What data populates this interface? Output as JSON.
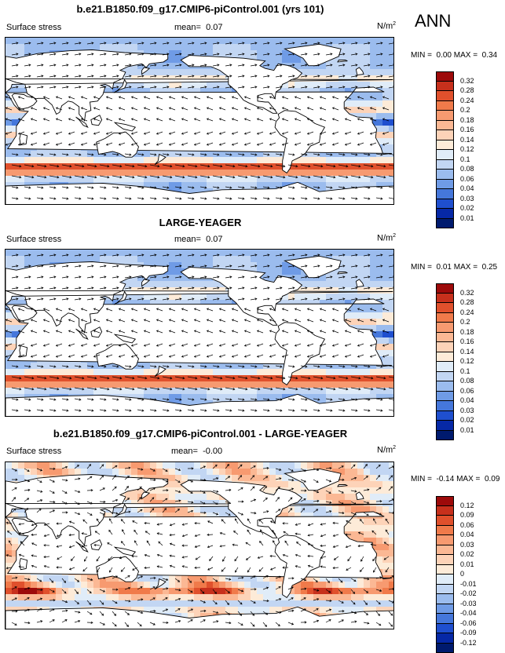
{
  "season": "ANN",
  "panels": [
    {
      "title": "b.e21.B1850.f09_g17.CMIP6-piControl.001 (yrs 101)",
      "variable": "Surface stress",
      "mean_label": "mean=",
      "mean": "0.07",
      "units": "N/m",
      "units_sup": "2",
      "min_label": "MIN =",
      "min": "0.00",
      "max_label": "MAX =",
      "max": "0.34",
      "levels": [
        "0.32",
        "0.28",
        "0.24",
        "0.2",
        "0.18",
        "0.16",
        "0.14",
        "0.12",
        "0.1",
        "0.08",
        "0.06",
        "0.04",
        "0.03",
        "0.02",
        "0.01"
      ],
      "colors": [
        "#9d0a0a",
        "#c7301c",
        "#e0502c",
        "#f07a4a",
        "#f79a70",
        "#fbb894",
        "#fdd3b8",
        "#fdebd8",
        "#e0ecf8",
        "#c2d6f3",
        "#9bbcee",
        "#6f9be6",
        "#4577db",
        "#1f4fcf",
        "#0628a6",
        "#001a6e"
      ],
      "field": "total"
    },
    {
      "title": "LARGE-YEAGER",
      "variable": "Surface stress",
      "mean_label": "mean=",
      "mean": "0.07",
      "units": "N/m",
      "units_sup": "2",
      "min_label": "MIN =",
      "min": "0.01",
      "max_label": "MAX =",
      "max": "0.25",
      "levels": [
        "0.32",
        "0.28",
        "0.24",
        "0.2",
        "0.18",
        "0.16",
        "0.14",
        "0.12",
        "0.1",
        "0.08",
        "0.06",
        "0.04",
        "0.03",
        "0.02",
        "0.01"
      ],
      "colors": [
        "#9d0a0a",
        "#c7301c",
        "#e0502c",
        "#f07a4a",
        "#f79a70",
        "#fbb894",
        "#fdd3b8",
        "#fdebd8",
        "#e0ecf8",
        "#c2d6f3",
        "#9bbcee",
        "#6f9be6",
        "#4577db",
        "#1f4fcf",
        "#0628a6",
        "#001a6e"
      ],
      "field": "total"
    },
    {
      "title": "b.e21.B1850.f09_g17.CMIP6-piControl.001 - LARGE-YEAGER",
      "variable": "Surface stress",
      "mean_label": "mean=",
      "mean": "-0.00",
      "units": "N/m",
      "units_sup": "2",
      "min_label": "MIN =",
      "min": "-0.14",
      "max_label": "MAX =",
      "max": "0.09",
      "levels": [
        "0.12",
        "0.09",
        "0.06",
        "0.04",
        "0.03",
        "0.02",
        "0.01",
        "0",
        "-0.01",
        "-0.02",
        "-0.03",
        "-0.04",
        "-0.06",
        "-0.09",
        "-0.12"
      ],
      "colors": [
        "#9d0a0a",
        "#c7301c",
        "#e0502c",
        "#f07a4a",
        "#f79a70",
        "#fbb894",
        "#fdd3b8",
        "#fdebd8",
        "#e0ecf8",
        "#c2d6f3",
        "#9bbcee",
        "#6f9be6",
        "#4577db",
        "#1f4fcf",
        "#0628a6",
        "#001a6e"
      ],
      "field": "diff"
    }
  ]
}
